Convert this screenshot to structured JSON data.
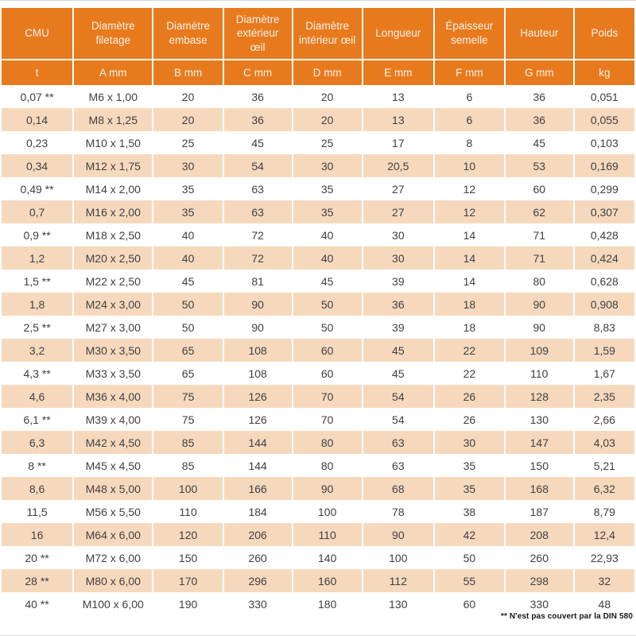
{
  "colors": {
    "header_bg": "#E87A1E",
    "header_text": "#FBF2E8",
    "stripe_bg": "#F6D9BD",
    "body_text": "#3F3F3F"
  },
  "table": {
    "columns": [
      {
        "label": "CMU",
        "unit": "t"
      },
      {
        "label": "Diamètre filetage",
        "unit": "A mm"
      },
      {
        "label": "Diamètre embase",
        "unit": "B mm"
      },
      {
        "label": "Diamètre extérieur œil",
        "unit": "C mm"
      },
      {
        "label": "Diamètre intérieur œil",
        "unit": "D mm"
      },
      {
        "label": "Longueur",
        "unit": "E mm"
      },
      {
        "label": "Épaisseur semelle",
        "unit": "F mm"
      },
      {
        "label": "Hauteur",
        "unit": "G mm"
      },
      {
        "label": "Poids",
        "unit": "kg"
      }
    ],
    "rows": [
      [
        "0,07 **",
        "M6 x 1,00",
        "20",
        "36",
        "20",
        "13",
        "6",
        "36",
        "0,051"
      ],
      [
        "0,14",
        "M8 x 1,25",
        "20",
        "36",
        "20",
        "13",
        "6",
        "36",
        "0,055"
      ],
      [
        "0,23",
        "M10 x 1,50",
        "25",
        "45",
        "25",
        "17",
        "8",
        "45",
        "0,103"
      ],
      [
        "0,34",
        "M12 x 1,75",
        "30",
        "54",
        "30",
        "20,5",
        "10",
        "53",
        "0,169"
      ],
      [
        "0,49 **",
        "M14 x 2,00",
        "35",
        "63",
        "35",
        "27",
        "12",
        "60",
        "0,299"
      ],
      [
        "0,7",
        "M16 x 2,00",
        "35",
        "63",
        "35",
        "27",
        "12",
        "62",
        "0,307"
      ],
      [
        "0,9 **",
        "M18 x 2,50",
        "40",
        "72",
        "40",
        "30",
        "14",
        "71",
        "0,428"
      ],
      [
        "1,2",
        "M20 x 2,50",
        "40",
        "72",
        "40",
        "30",
        "14",
        "71",
        "0,424"
      ],
      [
        "1,5 **",
        "M22 x 2,50",
        "45",
        "81",
        "45",
        "39",
        "14",
        "80",
        "0,628"
      ],
      [
        "1,8",
        "M24 x 3,00",
        "50",
        "90",
        "50",
        "36",
        "18",
        "90",
        "0,908"
      ],
      [
        "2,5 **",
        "M27 x 3,00",
        "50",
        "90",
        "50",
        "39",
        "18",
        "90",
        "8,83"
      ],
      [
        "3,2",
        "M30 x 3,50",
        "65",
        "108",
        "60",
        "45",
        "22",
        "109",
        "1,59"
      ],
      [
        "4,3 **",
        "M33 x 3,50",
        "65",
        "108",
        "60",
        "45",
        "22",
        "110",
        "1,67"
      ],
      [
        "4,6",
        "M36 x 4,00",
        "75",
        "126",
        "70",
        "54",
        "26",
        "128",
        "2,35"
      ],
      [
        "6,1 **",
        "M39 x 4,00",
        "75",
        "126",
        "70",
        "54",
        "26",
        "130",
        "2,66"
      ],
      [
        "6,3",
        "M42 x 4,50",
        "85",
        "144",
        "80",
        "63",
        "30",
        "147",
        "4,03"
      ],
      [
        "8 **",
        "M45 x 4,50",
        "85",
        "144",
        "80",
        "63",
        "35",
        "150",
        "5,21"
      ],
      [
        "8,6",
        "M48 x 5,00",
        "100",
        "166",
        "90",
        "68",
        "35",
        "168",
        "6,32"
      ],
      [
        "11,5",
        "M56 x 5,50",
        "110",
        "184",
        "100",
        "78",
        "38",
        "187",
        "8,79"
      ],
      [
        "16",
        "M64 x 6,00",
        "120",
        "206",
        "110",
        "90",
        "42",
        "208",
        "12,4"
      ],
      [
        "20 **",
        "M72 x 6,00",
        "150",
        "260",
        "140",
        "100",
        "50",
        "260",
        "22,93"
      ],
      [
        "28 **",
        "M80 x 6,00",
        "170",
        "296",
        "160",
        "112",
        "55",
        "298",
        "32"
      ],
      [
        "40 **",
        "M100 x 6,00",
        "190",
        "330",
        "180",
        "130",
        "60",
        "330",
        "48"
      ]
    ],
    "footnote": "** N'est pas couvert par la DIN 580"
  }
}
